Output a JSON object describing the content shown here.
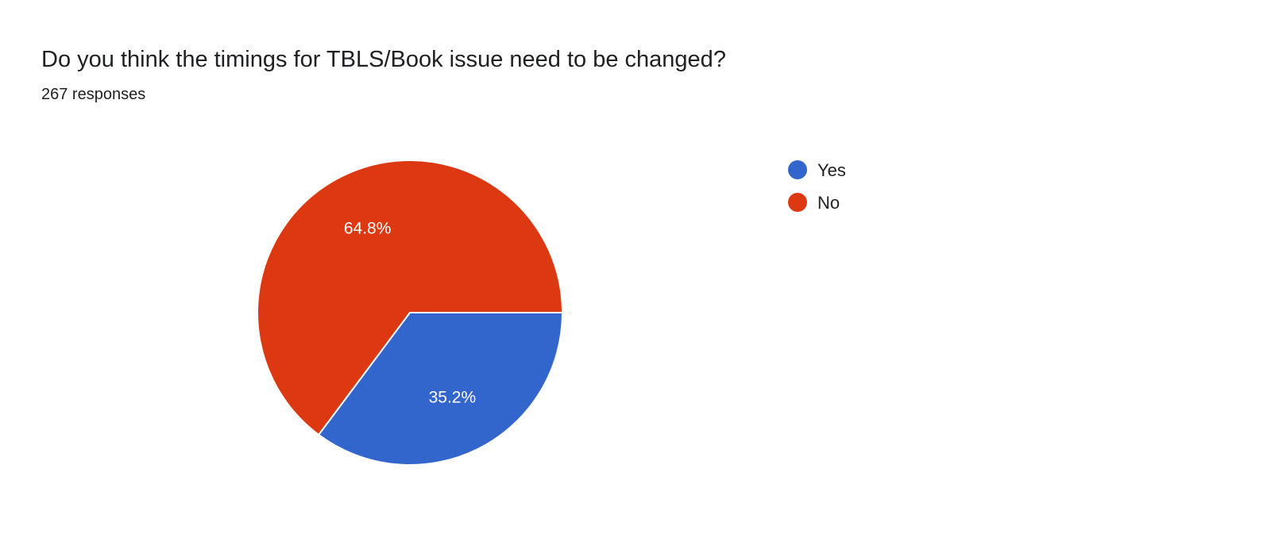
{
  "chart_data": {
    "type": "pie",
    "title": "Do you think the timings for TBLS/Book issue need to be changed?",
    "subtitle": "267 responses",
    "categories": [
      "Yes",
      "No"
    ],
    "values": [
      35.2,
      64.8
    ],
    "labels": [
      "35.2%",
      "64.8%"
    ],
    "colors": [
      "#3366cc",
      "#dc3912"
    ],
    "legend_position": "right"
  }
}
